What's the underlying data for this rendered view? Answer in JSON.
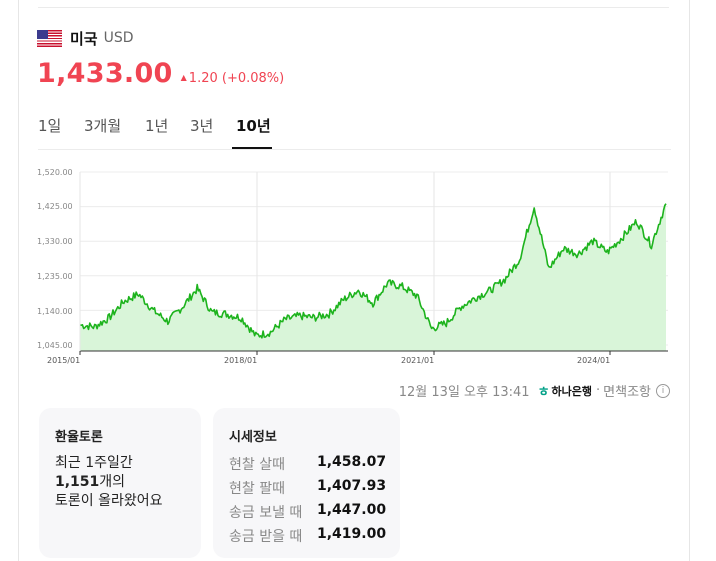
{
  "header": {
    "flag_icon": "us-flag-icon",
    "country": "미국",
    "currency": "USD"
  },
  "price": {
    "value": "1,433.00",
    "change_arrow": "▲",
    "change": "1.20 (+0.08%)",
    "color": "#f04452"
  },
  "tabs": [
    {
      "label": "1일",
      "active": false
    },
    {
      "label": "3개월",
      "active": false
    },
    {
      "label": "1년",
      "active": false
    },
    {
      "label": "3년",
      "active": false
    },
    {
      "label": "10년",
      "active": true
    }
  ],
  "chart_data": {
    "type": "area",
    "title": "",
    "xlabel": "",
    "ylabel": "",
    "ylim": [
      1045,
      1520
    ],
    "y_ticks": [
      "1,520.00",
      "1,425.00",
      "1,330.00",
      "1,235.00",
      "1,140.00",
      "1,045.00"
    ],
    "x_ticks": [
      "2015/01",
      "2018/01",
      "2021/01",
      "2024/01"
    ],
    "grid": true,
    "line_color": "#1db31d",
    "fill_color": "#d9f5d9",
    "x": [
      "2015/01",
      "2015/04",
      "2015/07",
      "2015/10",
      "2016/01",
      "2016/04",
      "2016/07",
      "2016/10",
      "2017/01",
      "2017/04",
      "2017/07",
      "2017/10",
      "2018/01",
      "2018/04",
      "2018/07",
      "2018/10",
      "2019/01",
      "2019/04",
      "2019/07",
      "2019/10",
      "2020/01",
      "2020/04",
      "2020/07",
      "2020/10",
      "2021/01",
      "2021/04",
      "2021/07",
      "2021/10",
      "2022/01",
      "2022/04",
      "2022/07",
      "2022/10",
      "2023/01",
      "2023/04",
      "2023/07",
      "2023/10",
      "2024/01",
      "2024/04",
      "2024/07",
      "2024/10",
      "2024/12"
    ],
    "values": [
      1100,
      1095,
      1120,
      1165,
      1185,
      1140,
      1110,
      1150,
      1200,
      1135,
      1130,
      1120,
      1070,
      1080,
      1115,
      1125,
      1120,
      1130,
      1170,
      1195,
      1160,
      1215,
      1205,
      1180,
      1090,
      1105,
      1150,
      1175,
      1195,
      1225,
      1280,
      1425,
      1255,
      1310,
      1295,
      1330,
      1300,
      1340,
      1385,
      1320,
      1433
    ]
  },
  "footer": {
    "timestamp": "12월 13일 오후 13:41",
    "bank": "하나은행",
    "separator": "·",
    "disclaimer": "면책조항",
    "info_icon": "i"
  },
  "talk_card": {
    "title": "환율토론",
    "line1": "최근 1주일간",
    "count": "1,151",
    "count_suffix": "개의",
    "line3": "토론이 올라왔어요"
  },
  "quote_card": {
    "title": "시세정보",
    "rows": [
      {
        "label": "현찰 살때",
        "value": "1,458.07"
      },
      {
        "label": "현찰 팔때",
        "value": "1,407.93"
      },
      {
        "label": "송금 보낼 때",
        "value": "1,447.00"
      },
      {
        "label": "송금 받을 때",
        "value": "1,419.00"
      }
    ]
  }
}
